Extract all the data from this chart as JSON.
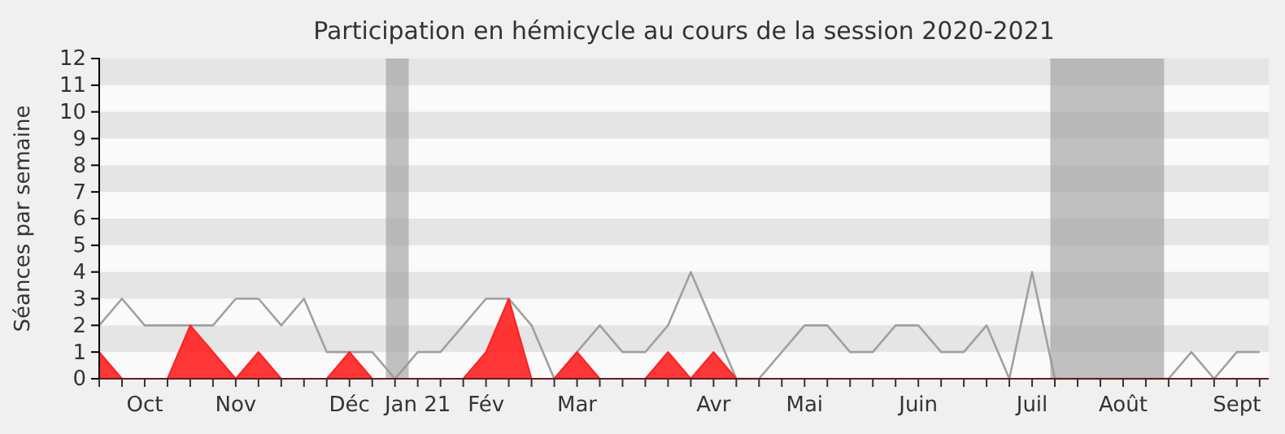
{
  "chart_data": {
    "type": "line",
    "title": "Participation en hémicycle au cours de la session 2020-2021",
    "ylabel": "Séances par semaine",
    "categories": [
      null,
      null,
      "Oct",
      null,
      null,
      null,
      "Nov",
      null,
      null,
      null,
      null,
      "Déc",
      null,
      null,
      "Jan 21",
      null,
      null,
      "Fév",
      null,
      null,
      null,
      "Mar",
      null,
      null,
      null,
      null,
      null,
      "Avr",
      null,
      null,
      null,
      "Mai",
      null,
      null,
      null,
      null,
      "Juin",
      null,
      null,
      null,
      null,
      "Juil",
      null,
      null,
      null,
      "Août",
      null,
      null,
      null,
      null,
      "Sept",
      null
    ],
    "series": [
      {
        "color": "#a0a0a0",
        "values": [
          2,
          3,
          2,
          2,
          2,
          2,
          3,
          3,
          2,
          3,
          1,
          1,
          1,
          0,
          1,
          1,
          2,
          3,
          3,
          2,
          0,
          1,
          2,
          1,
          1,
          2,
          4,
          2,
          0,
          0,
          1,
          2,
          2,
          1,
          1,
          2,
          2,
          1,
          1,
          2,
          0,
          4,
          0,
          0,
          0,
          0,
          0,
          0,
          1,
          0,
          1,
          1
        ]
      },
      {
        "type": "area",
        "color": "#ff2020",
        "values": [
          1,
          0,
          0,
          0,
          2,
          1,
          0,
          1,
          0,
          0,
          0,
          1,
          0,
          0,
          0,
          0,
          0,
          1,
          3,
          0,
          0,
          1,
          0,
          0,
          0,
          1,
          0,
          1,
          0,
          0,
          0,
          0,
          0,
          0,
          0,
          0,
          0,
          0,
          0,
          0,
          0,
          0,
          0,
          0,
          0,
          0,
          0,
          0,
          0,
          0,
          0,
          0
        ]
      }
    ],
    "ylim": [
      0,
      12
    ],
    "yticks": [
      0,
      1,
      2,
      3,
      4,
      5,
      6,
      7,
      8,
      9,
      10,
      11,
      12
    ],
    "bands": [
      {
        "axis": "y",
        "from": 1,
        "to": 2,
        "color": "#e5e5e5"
      },
      {
        "axis": "y",
        "from": 3,
        "to": 4,
        "color": "#e5e5e5"
      },
      {
        "axis": "y",
        "from": 5,
        "to": 6,
        "color": "#e5e5e5"
      },
      {
        "axis": "y",
        "from": 7,
        "to": 8,
        "color": "#e5e5e5"
      },
      {
        "axis": "y",
        "from": 9,
        "to": 10,
        "color": "#e5e5e5"
      },
      {
        "axis": "y",
        "from": 11,
        "to": 12,
        "color": "#e5e5e5"
      }
    ]
  }
}
